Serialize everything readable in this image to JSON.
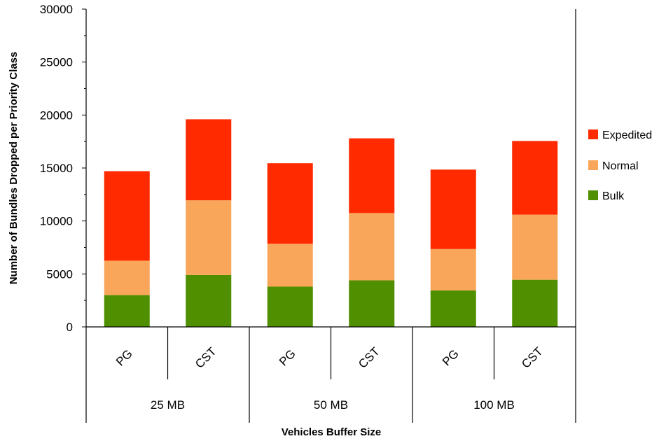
{
  "chart_data": {
    "type": "bar",
    "stacked": true,
    "groups": [
      {
        "label": "25 MB",
        "categories": [
          "PG",
          "CST"
        ]
      },
      {
        "label": "50 MB",
        "categories": [
          "PG",
          "CST"
        ]
      },
      {
        "label": "100 MB",
        "categories": [
          "PG",
          "CST"
        ]
      }
    ],
    "series": [
      {
        "name": "Bulk",
        "color": "#4f8f00",
        "values": [
          3000,
          4900,
          3800,
          4400,
          3450,
          4450
        ]
      },
      {
        "name": "Normal",
        "color": "#f9a65a",
        "values": [
          3250,
          7050,
          4050,
          6350,
          3900,
          6150
        ]
      },
      {
        "name": "Expedited",
        "color": "#ff2a00",
        "values": [
          8450,
          7650,
          7600,
          7050,
          7500,
          6950
        ]
      }
    ],
    "legend_order": [
      "Expedited",
      "Normal",
      "Bulk"
    ],
    "ylabel": "Number of Bundles Dropped per Priority Class",
    "xlabel": "Vehicles Buffer Size",
    "ylim": [
      0,
      30000
    ],
    "yticks": [
      0,
      5000,
      10000,
      15000,
      20000,
      25000,
      30000
    ],
    "legend_position": "right",
    "grid": false
  }
}
